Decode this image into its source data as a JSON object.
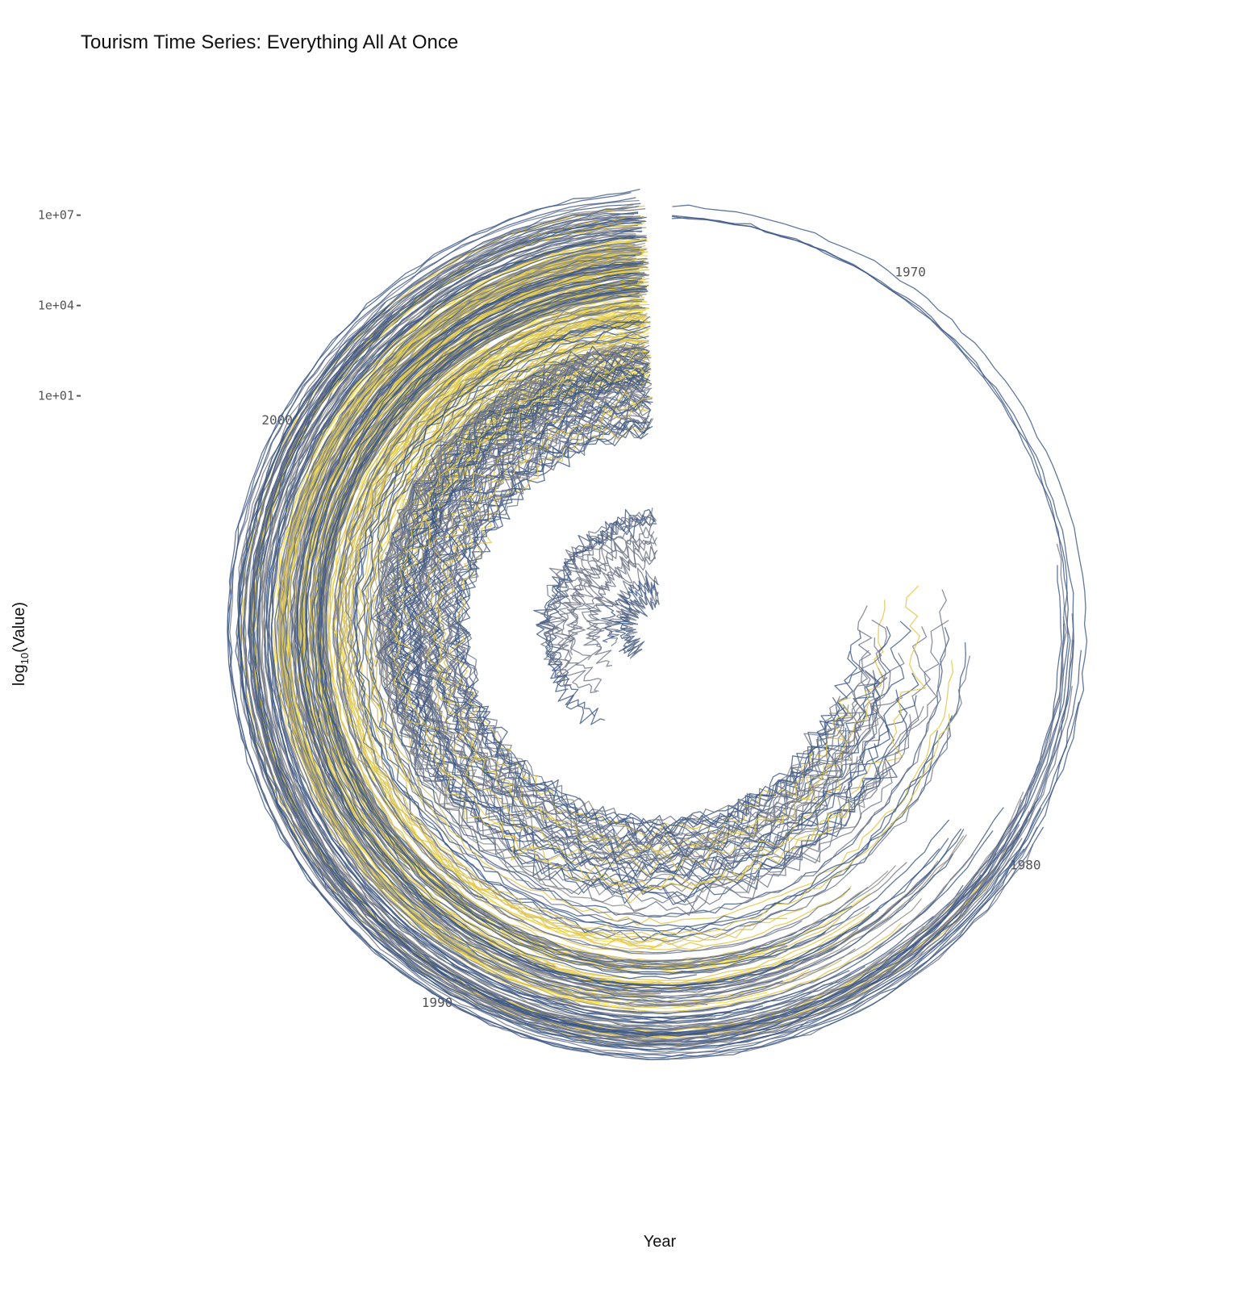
{
  "chart_data": {
    "type": "line",
    "coord": "polar",
    "title": "Tourism Time Series: Everything All At Once",
    "xlabel": "Year",
    "ylabel": "log10(Value)",
    "ylabel_parts": {
      "log": "log",
      "base": "10",
      "rest": "(Value)"
    },
    "x_breaks": [
      1970,
      1980,
      1990,
      2000
    ],
    "x_range": [
      1966,
      2007
    ],
    "y_scale": "log10",
    "y_ticks": [
      {
        "value": 10,
        "label": "1e+01"
      },
      {
        "value": 10000,
        "label": "1e+04"
      },
      {
        "value": 10000000,
        "label": "1e+07"
      }
    ],
    "y_range_log10": [
      -6.7,
      8.25
    ],
    "grid": false,
    "legend": "none",
    "series_count": 427,
    "palette": [
      "#3b5684",
      "#6f7588",
      "#8a8a88",
      "#c9bd72",
      "#e2c84c",
      "#f7e040"
    ],
    "groups": [
      {
        "count": 95,
        "start": [
          1998,
          2002
        ],
        "end": 2006.8,
        "level": [
          1.5,
          6.3
        ],
        "colors": [
          3,
          4,
          5,
          4
        ]
      },
      {
        "count": 75,
        "start": [
          1982,
          1993
        ],
        "end": 2006.8,
        "level": [
          3.7,
          6.0
        ],
        "colors": [
          3,
          4,
          5,
          4,
          1
        ]
      },
      {
        "count": 50,
        "start": [
          1985,
          1996
        ],
        "end": 2006.8,
        "level": [
          1.8,
          5.5
        ],
        "colors": [
          1,
          2,
          3,
          4,
          0
        ]
      },
      {
        "count": 32,
        "start": [
          1990,
          1996
        ],
        "end": 2006.8,
        "level": [
          0.6,
          2.6
        ],
        "colors": [
          1,
          2,
          0
        ]
      },
      {
        "count": 25,
        "start": [
          1976,
          1980
        ],
        "end": 2006.8,
        "level": [
          -0.5,
          2.2
        ],
        "colors": [
          0,
          1,
          2
        ]
      },
      {
        "count": 35,
        "start": [
          1975,
          1982
        ],
        "end": 2006.8,
        "level": [
          -0.3,
          3.6
        ],
        "colors": [
          0,
          1,
          0,
          4
        ]
      },
      {
        "count": 30,
        "start": [
          1980,
          1985
        ],
        "end": 2006.8,
        "level": [
          4.3,
          5.9
        ],
        "colors": [
          0,
          1,
          2
        ]
      },
      {
        "count": 40,
        "start": [
          1979,
          1987
        ],
        "end": 2006.8,
        "level": [
          6.0,
          7.2
        ],
        "colors": [
          0,
          1,
          0,
          4,
          2
        ]
      },
      {
        "count": 12,
        "start": [
          1979,
          1980
        ],
        "end": 2006.8,
        "level": [
          6.6,
          7.7
        ],
        "colors": [
          0,
          1
        ]
      },
      {
        "count": 9,
        "start": [
          1974,
          1978
        ],
        "end": 2002.5,
        "level": [
          6.6,
          7.4
        ],
        "colors": [
          0,
          1
        ]
      },
      {
        "count": 20,
        "start": [
          1990,
          1996
        ],
        "end": 2006.8,
        "level": [
          -5.8,
          -2.8
        ],
        "colors": [
          0,
          1,
          1
        ]
      },
      {
        "count": 4,
        "start": [
          1966.2,
          1966.2
        ],
        "end": 2006.8,
        "level": [
          6.8,
          7.35
        ],
        "colors": [
          0,
          1
        ]
      }
    ]
  }
}
